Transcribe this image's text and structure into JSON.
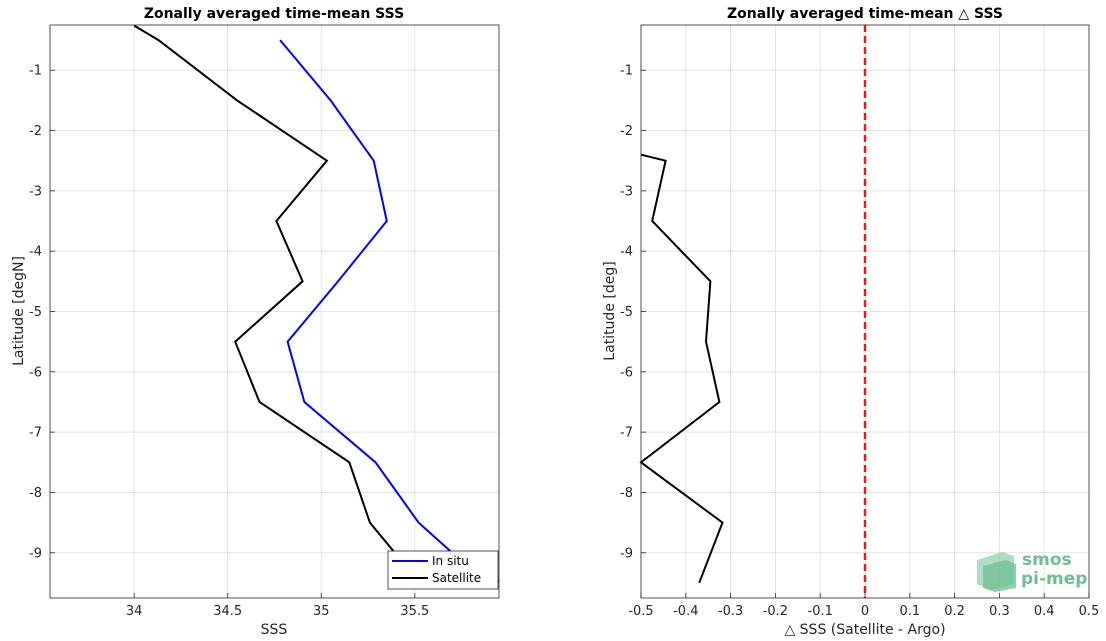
{
  "chart_data": [
    {
      "type": "line",
      "title": "Zonally averaged time-mean SSS",
      "xlabel": "SSS",
      "ylabel": "Latitude [degN]",
      "xlim": [
        33.55,
        35.95
      ],
      "ylim": [
        -9.75,
        -0.25
      ],
      "xticks": [
        34,
        34.5,
        35,
        35.5
      ],
      "xtick_labels": [
        "34",
        "34.5",
        "35",
        "35.5"
      ],
      "yticks": [
        -1,
        -2,
        -3,
        -4,
        -5,
        -6,
        -7,
        -8,
        -9
      ],
      "ytick_labels": [
        "-1",
        "-2",
        "-3",
        "-4",
        "-5",
        "-6",
        "-7",
        "-8",
        "-9"
      ],
      "grid": true,
      "legend_position": "bottom-right",
      "series": [
        {
          "name": "In situ",
          "color": "#0000ff",
          "x": [
            34.78,
            35.05,
            35.28,
            35.35,
            35.09,
            34.82,
            34.91,
            35.29,
            35.52,
            35.7,
            35.95
          ],
          "y": [
            -0.5,
            -1.5,
            -2.5,
            -3.5,
            -4.5,
            -5.5,
            -6.5,
            -7.5,
            -8.5,
            -9.0,
            -9.48
          ]
        },
        {
          "name": "Satellite",
          "color": "#000000",
          "x": [
            34.0,
            34.13,
            34.55,
            35.03,
            34.76,
            34.9,
            34.54,
            34.67,
            35.15,
            35.26,
            35.42
          ],
          "y": [
            -0.26,
            -0.5,
            -1.5,
            -2.5,
            -3.5,
            -4.5,
            -5.5,
            -6.5,
            -7.5,
            -8.5,
            -9.1
          ]
        }
      ]
    },
    {
      "type": "line",
      "title": "Zonally averaged time-mean △ SSS",
      "xlabel": "△ SSS (Satellite - Argo)",
      "ylabel": "Latitude [deg]",
      "xlim": [
        -0.5,
        0.5
      ],
      "ylim": [
        -9.75,
        -0.25
      ],
      "xticks": [
        -0.5,
        -0.4,
        -0.3,
        -0.2,
        -0.1,
        0,
        0.1,
        0.2,
        0.3,
        0.4,
        0.5
      ],
      "xtick_labels": [
        "-0.5",
        "-0.4",
        "-0.3",
        "-0.2",
        "-0.1",
        "0",
        "0.1",
        "0.2",
        "0.3",
        "0.4",
        "0.5"
      ],
      "yticks": [
        -1,
        -2,
        -3,
        -4,
        -5,
        -6,
        -7,
        -8,
        -9
      ],
      "ytick_labels": [
        "-1",
        "-2",
        "-3",
        "-4",
        "-5",
        "-6",
        "-7",
        "-8",
        "-9"
      ],
      "grid": true,
      "reference_line": {
        "x": 0,
        "color": "#e41a1c",
        "style": "dashed"
      },
      "series": [
        {
          "color": "#000000",
          "x": [
            -0.5,
            -0.445,
            -0.475,
            -0.345,
            -0.355,
            -0.325,
            -0.5,
            -0.318,
            -0.37
          ],
          "y": [
            -2.4,
            -2.5,
            -3.5,
            -4.5,
            -5.5,
            -6.5,
            -7.5,
            -8.5,
            -9.5
          ]
        }
      ]
    }
  ],
  "logo": {
    "line1": "smos",
    "line2": "pi-mep",
    "color": "#6fbe93"
  }
}
